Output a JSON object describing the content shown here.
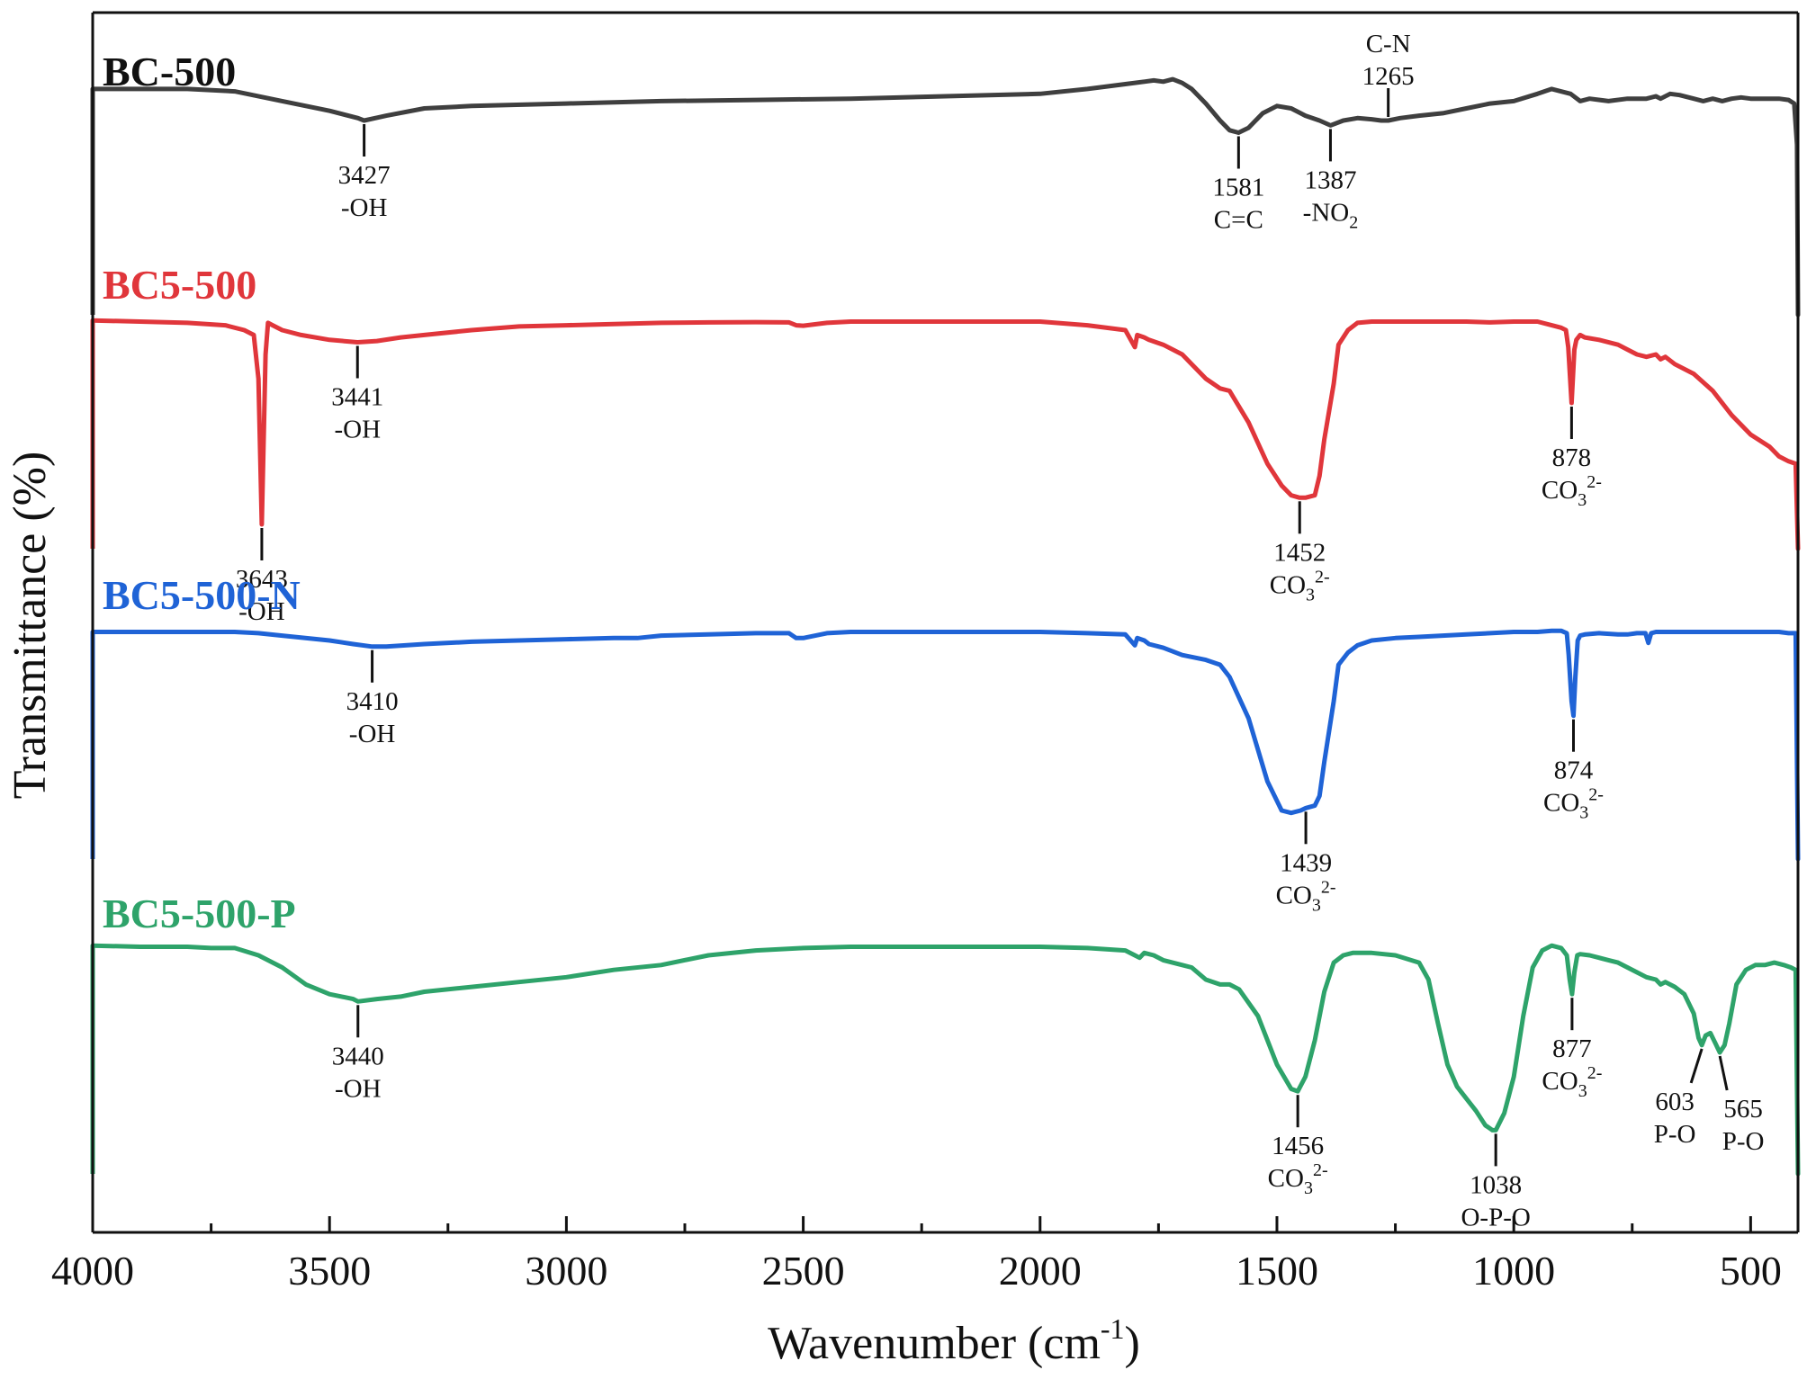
{
  "chart_data": {
    "type": "line",
    "title": "",
    "xlabel": "Wavenumber (cm",
    "xlabel_sup": "-1",
    "xlabel_close": ")",
    "ylabel": "Transmittance (%)",
    "xlim": [
      4000,
      400
    ],
    "x_direction": "reversed",
    "major_ticks": [
      4000,
      3500,
      3000,
      2500,
      2000,
      1500,
      1000,
      500
    ],
    "major_tick_labels": [
      "4000",
      "3500",
      "3000",
      "2500",
      "2000",
      "1500",
      "1000",
      "500"
    ],
    "minor_ticks": [
      3750,
      3250,
      2750,
      2250,
      1750,
      1250,
      750
    ],
    "y_ticks": "none",
    "grid": false,
    "legend": "series names written directly above each curve (stacked, offset)",
    "series": [
      {
        "name": "BC-500",
        "color": "#3f3f3f",
        "baseline": 0.94,
        "x": [
          4000,
          3900,
          3800,
          3700,
          3600,
          3500,
          3440,
          3427,
          3380,
          3300,
          3200,
          3000,
          2800,
          2600,
          2400,
          2200,
          2000,
          1900,
          1820,
          1780,
          1760,
          1740,
          1720,
          1700,
          1680,
          1650,
          1620,
          1600,
          1581,
          1560,
          1530,
          1500,
          1470,
          1440,
          1410,
          1387,
          1360,
          1330,
          1300,
          1280,
          1265,
          1240,
          1200,
          1150,
          1100,
          1050,
          1000,
          950,
          920,
          880,
          860,
          840,
          800,
          760,
          720,
          700,
          690,
          670,
          650,
          620,
          600,
          580,
          560,
          540,
          520,
          500,
          480,
          440,
          420,
          408,
          402,
          400
        ],
        "y": [
          0.93,
          0.93,
          0.93,
          0.92,
          0.88,
          0.84,
          0.81,
          0.8,
          0.82,
          0.85,
          0.86,
          0.87,
          0.88,
          0.885,
          0.89,
          0.9,
          0.91,
          0.93,
          0.95,
          0.96,
          0.965,
          0.96,
          0.97,
          0.955,
          0.93,
          0.87,
          0.8,
          0.76,
          0.75,
          0.77,
          0.83,
          0.86,
          0.85,
          0.82,
          0.8,
          0.78,
          0.8,
          0.81,
          0.805,
          0.8,
          0.8,
          0.81,
          0.82,
          0.83,
          0.85,
          0.87,
          0.88,
          0.91,
          0.93,
          0.91,
          0.88,
          0.89,
          0.88,
          0.89,
          0.89,
          0.9,
          0.89,
          0.91,
          0.905,
          0.89,
          0.88,
          0.89,
          0.88,
          0.89,
          0.895,
          0.89,
          0.89,
          0.89,
          0.885,
          0.87,
          0.7,
          0.0
        ]
      },
      {
        "name": "BC5-500",
        "color": "#e0363b",
        "baseline": 0.94,
        "x": [
          4000,
          3900,
          3800,
          3720,
          3680,
          3660,
          3650,
          3643,
          3635,
          3630,
          3620,
          3600,
          3560,
          3500,
          3441,
          3400,
          3350,
          3300,
          3200,
          3100,
          3000,
          2900,
          2800,
          2700,
          2600,
          2530,
          2515,
          2500,
          2450,
          2400,
          2300,
          2200,
          2100,
          2000,
          1900,
          1820,
          1800,
          1795,
          1780,
          1770,
          1740,
          1700,
          1650,
          1620,
          1600,
          1560,
          1520,
          1490,
          1470,
          1452,
          1440,
          1420,
          1410,
          1400,
          1380,
          1370,
          1350,
          1330,
          1300,
          1250,
          1200,
          1150,
          1100,
          1050,
          1000,
          950,
          920,
          900,
          890,
          885,
          878,
          872,
          868,
          860,
          850,
          820,
          780,
          760,
          740,
          720,
          700,
          690,
          680,
          660,
          620,
          580,
          540,
          500,
          460,
          440,
          420,
          405,
          400
        ],
        "y": [
          0.94,
          0.935,
          0.93,
          0.92,
          0.9,
          0.88,
          0.7,
          0.1,
          0.8,
          0.93,
          0.92,
          0.9,
          0.88,
          0.86,
          0.85,
          0.855,
          0.87,
          0.88,
          0.9,
          0.915,
          0.92,
          0.925,
          0.93,
          0.932,
          0.933,
          0.932,
          0.92,
          0.918,
          0.93,
          0.935,
          0.935,
          0.935,
          0.935,
          0.935,
          0.92,
          0.9,
          0.83,
          0.88,
          0.87,
          0.86,
          0.84,
          0.8,
          0.7,
          0.66,
          0.65,
          0.52,
          0.35,
          0.26,
          0.22,
          0.21,
          0.21,
          0.22,
          0.3,
          0.45,
          0.68,
          0.84,
          0.9,
          0.93,
          0.935,
          0.935,
          0.935,
          0.935,
          0.935,
          0.932,
          0.935,
          0.935,
          0.92,
          0.91,
          0.9,
          0.83,
          0.6,
          0.82,
          0.86,
          0.88,
          0.87,
          0.86,
          0.84,
          0.82,
          0.8,
          0.79,
          0.8,
          0.78,
          0.79,
          0.76,
          0.72,
          0.65,
          0.55,
          0.47,
          0.42,
          0.38,
          0.36,
          0.35,
          0.0
        ]
      },
      {
        "name": "BC5-500-N",
        "color": "#1f63d6",
        "baseline": 0.94,
        "x": [
          4000,
          3900,
          3800,
          3700,
          3650,
          3600,
          3500,
          3450,
          3410,
          3380,
          3300,
          3200,
          3100,
          3000,
          2900,
          2850,
          2800,
          2700,
          2600,
          2530,
          2515,
          2500,
          2450,
          2400,
          2300,
          2200,
          2100,
          2000,
          1900,
          1820,
          1800,
          1795,
          1780,
          1770,
          1740,
          1700,
          1650,
          1620,
          1600,
          1560,
          1520,
          1490,
          1470,
          1450,
          1439,
          1420,
          1410,
          1400,
          1380,
          1370,
          1350,
          1330,
          1300,
          1250,
          1200,
          1150,
          1100,
          1050,
          1000,
          950,
          920,
          900,
          888,
          884,
          878,
          874,
          870,
          865,
          860,
          850,
          820,
          780,
          760,
          740,
          722,
          716,
          710,
          700,
          680,
          640,
          600,
          560,
          520,
          480,
          440,
          420,
          405,
          400
        ],
        "y": [
          0.935,
          0.935,
          0.935,
          0.935,
          0.93,
          0.92,
          0.9,
          0.885,
          0.875,
          0.875,
          0.885,
          0.895,
          0.9,
          0.905,
          0.91,
          0.91,
          0.92,
          0.925,
          0.93,
          0.93,
          0.91,
          0.91,
          0.93,
          0.935,
          0.935,
          0.935,
          0.935,
          0.935,
          0.93,
          0.925,
          0.88,
          0.91,
          0.9,
          0.885,
          0.87,
          0.84,
          0.82,
          0.8,
          0.75,
          0.58,
          0.32,
          0.2,
          0.19,
          0.2,
          0.21,
          0.22,
          0.26,
          0.4,
          0.65,
          0.8,
          0.85,
          0.88,
          0.9,
          0.91,
          0.915,
          0.92,
          0.925,
          0.93,
          0.935,
          0.935,
          0.94,
          0.94,
          0.93,
          0.84,
          0.65,
          0.59,
          0.75,
          0.9,
          0.92,
          0.925,
          0.93,
          0.925,
          0.925,
          0.93,
          0.93,
          0.89,
          0.93,
          0.935,
          0.935,
          0.935,
          0.935,
          0.935,
          0.935,
          0.935,
          0.935,
          0.93,
          0.93,
          0.0
        ]
      },
      {
        "name": "BC5-500-P",
        "color": "#2ea36a",
        "baseline": 0.94,
        "x": [
          4000,
          3900,
          3800,
          3750,
          3700,
          3650,
          3600,
          3550,
          3500,
          3450,
          3440,
          3400,
          3350,
          3300,
          3200,
          3100,
          3000,
          2900,
          2800,
          2700,
          2600,
          2500,
          2400,
          2300,
          2200,
          2100,
          2000,
          1900,
          1820,
          1800,
          1790,
          1780,
          1760,
          1740,
          1700,
          1680,
          1650,
          1620,
          1600,
          1580,
          1540,
          1500,
          1470,
          1456,
          1440,
          1420,
          1400,
          1380,
          1360,
          1340,
          1300,
          1250,
          1200,
          1180,
          1160,
          1140,
          1120,
          1100,
          1080,
          1060,
          1045,
          1038,
          1020,
          1000,
          980,
          960,
          940,
          920,
          900,
          888,
          882,
          877,
          872,
          866,
          860,
          840,
          820,
          800,
          780,
          760,
          740,
          720,
          700,
          690,
          680,
          660,
          640,
          620,
          610,
          603,
          595,
          585,
          575,
          565,
          555,
          545,
          530,
          510,
          490,
          470,
          450,
          430,
          415,
          405,
          400
        ],
        "y": [
          0.94,
          0.935,
          0.935,
          0.93,
          0.93,
          0.9,
          0.85,
          0.78,
          0.74,
          0.72,
          0.71,
          0.72,
          0.73,
          0.75,
          0.77,
          0.79,
          0.81,
          0.84,
          0.86,
          0.9,
          0.92,
          0.93,
          0.935,
          0.935,
          0.935,
          0.935,
          0.935,
          0.93,
          0.92,
          0.9,
          0.89,
          0.91,
          0.9,
          0.88,
          0.86,
          0.85,
          0.8,
          0.78,
          0.78,
          0.76,
          0.65,
          0.45,
          0.35,
          0.34,
          0.4,
          0.55,
          0.75,
          0.87,
          0.9,
          0.91,
          0.91,
          0.9,
          0.87,
          0.8,
          0.62,
          0.45,
          0.36,
          0.31,
          0.26,
          0.2,
          0.18,
          0.18,
          0.25,
          0.4,
          0.65,
          0.85,
          0.92,
          0.94,
          0.93,
          0.9,
          0.8,
          0.74,
          0.83,
          0.9,
          0.905,
          0.9,
          0.89,
          0.88,
          0.87,
          0.85,
          0.83,
          0.81,
          0.8,
          0.78,
          0.79,
          0.77,
          0.74,
          0.66,
          0.56,
          0.53,
          0.57,
          0.58,
          0.54,
          0.5,
          0.53,
          0.62,
          0.78,
          0.84,
          0.86,
          0.86,
          0.87,
          0.86,
          0.85,
          0.84,
          0.0
        ]
      }
    ],
    "annotations": [
      {
        "series": 0,
        "x": 3427,
        "lines": [
          [
            "3427"
          ],
          [
            "-OH"
          ]
        ],
        "side": "below"
      },
      {
        "series": 0,
        "x": 1581,
        "lines": [
          [
            "1581"
          ],
          [
            "C=C"
          ]
        ],
        "side": "below"
      },
      {
        "series": 0,
        "x": 1387,
        "lines": [
          [
            "1387"
          ],
          [
            "-NO",
            "2",
            ""
          ]
        ],
        "side": "below"
      },
      {
        "series": 0,
        "x": 1265,
        "lines": [
          [
            "C-N"
          ],
          [
            "1265"
          ]
        ],
        "side": "above"
      },
      {
        "series": 1,
        "x": 3643,
        "lines": [
          [
            "3643"
          ],
          [
            "-OH"
          ]
        ],
        "side": "below"
      },
      {
        "series": 1,
        "x": 3441,
        "lines": [
          [
            "3441"
          ],
          [
            "-OH"
          ]
        ],
        "side": "below"
      },
      {
        "series": 1,
        "x": 1452,
        "lines": [
          [
            "1452"
          ],
          [
            "CO",
            "3",
            "2-"
          ]
        ],
        "side": "below"
      },
      {
        "series": 1,
        "x": 878,
        "lines": [
          [
            "878"
          ],
          [
            "CO",
            "3",
            "2-"
          ]
        ],
        "side": "below"
      },
      {
        "series": 2,
        "x": 3410,
        "lines": [
          [
            "3410"
          ],
          [
            "-OH"
          ]
        ],
        "side": "below"
      },
      {
        "series": 2,
        "x": 1439,
        "lines": [
          [
            "1439"
          ],
          [
            "CO",
            "3",
            "2-"
          ]
        ],
        "side": "below"
      },
      {
        "series": 2,
        "x": 874,
        "lines": [
          [
            "874"
          ],
          [
            "CO",
            "3",
            "2-"
          ]
        ],
        "side": "below"
      },
      {
        "series": 3,
        "x": 3440,
        "lines": [
          [
            "3440"
          ],
          [
            "-OH"
          ]
        ],
        "side": "below"
      },
      {
        "series": 3,
        "x": 1456,
        "lines": [
          [
            "1456"
          ],
          [
            "CO",
            "3",
            "2-"
          ]
        ],
        "side": "below"
      },
      {
        "series": 3,
        "x": 1038,
        "lines": [
          [
            "1038"
          ],
          [
            "O-P-O"
          ]
        ],
        "side": "below"
      },
      {
        "series": 3,
        "x": 877,
        "lines": [
          [
            "877"
          ],
          [
            "CO",
            "3",
            "2-"
          ]
        ],
        "side": "below"
      },
      {
        "series": 3,
        "x": 603,
        "lines": [
          [
            "603"
          ],
          [
            "P-O"
          ]
        ],
        "side": "below-left"
      },
      {
        "series": 3,
        "x": 565,
        "lines": [
          [
            "565"
          ],
          [
            "P-O"
          ]
        ],
        "side": "below-right"
      }
    ]
  }
}
